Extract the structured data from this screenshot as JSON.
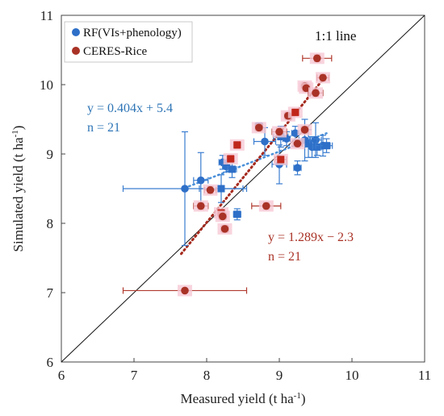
{
  "chart_data": {
    "type": "scatter",
    "xlabel": "Measured yield (t ha",
    "xlabel_sup": "-1",
    "xlabel_end": ")",
    "ylabel": "Simulated yield (t ha",
    "ylabel_sup": "-1",
    "ylabel_end": ")",
    "xlim": [
      6,
      11
    ],
    "ylim": [
      6,
      11
    ],
    "xticks": [
      "6",
      "7",
      "8",
      "9",
      "10",
      "11"
    ],
    "yticks": [
      "6",
      "7",
      "8",
      "9",
      "10",
      "11"
    ],
    "legend_position": "top-left",
    "line_label": "1:1 line",
    "series": [
      {
        "name": "RF(VIs+phenology)",
        "color": "#2e6fc8",
        "fit_label": "y = 0.404x + 5.4",
        "n_label": "n = 21",
        "fit": {
          "slope": 0.404,
          "intercept": 5.4,
          "x_range": [
            7.7,
            9.65
          ]
        },
        "points": [
          {
            "x": 7.7,
            "y": 8.5,
            "xerr": 0.85,
            "yerr": 0.82,
            "marker": "circle"
          },
          {
            "x": 7.92,
            "y": 8.62,
            "xerr": 0.1,
            "yerr": 0.4,
            "marker": "circle"
          },
          {
            "x": 8.2,
            "y": 8.5,
            "xerr": 0.3,
            "yerr": 0.2,
            "marker": "square"
          },
          {
            "x": 8.22,
            "y": 8.88,
            "xerr": 0.05,
            "yerr": 0.1,
            "marker": "circle"
          },
          {
            "x": 8.27,
            "y": 8.82,
            "xerr": 0.05,
            "yerr": 0.08,
            "marker": "circle"
          },
          {
            "x": 8.35,
            "y": 8.78,
            "xerr": 0.06,
            "yerr": 0.12,
            "marker": "square"
          },
          {
            "x": 8.42,
            "y": 8.13,
            "xerr": 0.05,
            "yerr": 0.08,
            "marker": "square"
          },
          {
            "x": 8.72,
            "y": 9.4,
            "xerr": 0.05,
            "yerr": 0.05,
            "marker": "square"
          },
          {
            "x": 8.8,
            "y": 9.18,
            "xerr": 0.15,
            "yerr": 0.2,
            "marker": "circle"
          },
          {
            "x": 9.0,
            "y": 8.85,
            "xerr": 0.1,
            "yerr": 0.28,
            "marker": "circle"
          },
          {
            "x": 9.02,
            "y": 9.25,
            "xerr": 0.1,
            "yerr": 0.15,
            "marker": "square"
          },
          {
            "x": 9.1,
            "y": 9.22,
            "xerr": 0.05,
            "yerr": 0.1,
            "marker": "circle"
          },
          {
            "x": 9.22,
            "y": 9.3,
            "xerr": 0.05,
            "yerr": 0.1,
            "marker": "circle"
          },
          {
            "x": 9.25,
            "y": 8.8,
            "xerr": 0.05,
            "yerr": 0.1,
            "marker": "circle"
          },
          {
            "x": 9.35,
            "y": 9.2,
            "xerr": 0.08,
            "yerr": 0.3,
            "marker": "circle"
          },
          {
            "x": 9.4,
            "y": 9.15,
            "xerr": 0.08,
            "yerr": 0.2,
            "marker": "square"
          },
          {
            "x": 9.45,
            "y": 9.1,
            "xerr": 0.1,
            "yerr": 0.15,
            "marker": "circle"
          },
          {
            "x": 9.5,
            "y": 9.2,
            "xerr": 0.08,
            "yerr": 0.25,
            "marker": "circle"
          },
          {
            "x": 9.52,
            "y": 9.1,
            "xerr": 0.06,
            "yerr": 0.12,
            "marker": "square"
          },
          {
            "x": 9.6,
            "y": 9.12,
            "xerr": 0.1,
            "yerr": 0.15,
            "marker": "circle"
          },
          {
            "x": 9.65,
            "y": 9.12,
            "xerr": 0.08,
            "yerr": 0.1,
            "marker": "square"
          }
        ]
      },
      {
        "name": "CERES-Rice",
        "color": "#a93226",
        "fit_label": "y = 1.289x − 2.3",
        "n_label": "n = 21",
        "fit": {
          "slope": 1.289,
          "intercept": -2.3,
          "x_range": [
            7.65,
            9.65
          ]
        },
        "points": [
          {
            "x": 7.7,
            "y": 7.03,
            "xerr": 0.85,
            "yerr": 0.0,
            "marker": "circle"
          },
          {
            "x": 7.92,
            "y": 8.25,
            "xerr": 0.1,
            "yerr": 0.05,
            "marker": "circle"
          },
          {
            "x": 8.05,
            "y": 8.48,
            "xerr": 0.08,
            "yerr": 0.05,
            "marker": "circle"
          },
          {
            "x": 8.2,
            "y": 8.15,
            "xerr": 0.05,
            "yerr": 0.05,
            "marker": "square"
          },
          {
            "x": 8.22,
            "y": 8.1,
            "xerr": 0.05,
            "yerr": 0.05,
            "marker": "circle"
          },
          {
            "x": 8.25,
            "y": 7.92,
            "xerr": 0.05,
            "yerr": 0.05,
            "marker": "circle"
          },
          {
            "x": 8.33,
            "y": 8.93,
            "xerr": 0.05,
            "yerr": 0.05,
            "marker": "square"
          },
          {
            "x": 8.42,
            "y": 9.13,
            "xerr": 0.05,
            "yerr": 0.05,
            "marker": "square"
          },
          {
            "x": 8.72,
            "y": 9.38,
            "xerr": 0.05,
            "yerr": 0.05,
            "marker": "circle"
          },
          {
            "x": 8.82,
            "y": 8.25,
            "xerr": 0.2,
            "yerr": 0.05,
            "marker": "circle"
          },
          {
            "x": 9.0,
            "y": 9.32,
            "xerr": 0.1,
            "yerr": 0.05,
            "marker": "circle"
          },
          {
            "x": 9.02,
            "y": 8.92,
            "xerr": 0.08,
            "yerr": 0.05,
            "marker": "square"
          },
          {
            "x": 9.12,
            "y": 9.55,
            "xerr": 0.05,
            "yerr": 0.05,
            "marker": "circle"
          },
          {
            "x": 9.22,
            "y": 9.6,
            "xerr": 0.05,
            "yerr": 0.05,
            "marker": "square"
          },
          {
            "x": 9.25,
            "y": 9.15,
            "xerr": 0.06,
            "yerr": 0.05,
            "marker": "circle"
          },
          {
            "x": 9.35,
            "y": 9.98,
            "xerr": 0.05,
            "yerr": 0.05,
            "marker": "circle"
          },
          {
            "x": 9.37,
            "y": 9.95,
            "xerr": 0.05,
            "yerr": 0.05,
            "marker": "circle"
          },
          {
            "x": 9.35,
            "y": 9.35,
            "xerr": 0.05,
            "yerr": 0.05,
            "marker": "circle"
          },
          {
            "x": 9.5,
            "y": 9.88,
            "xerr": 0.1,
            "yerr": 0.05,
            "marker": "circle"
          },
          {
            "x": 9.52,
            "y": 10.38,
            "xerr": 0.2,
            "yerr": 0.05,
            "marker": "circle"
          },
          {
            "x": 9.6,
            "y": 10.1,
            "xerr": 0.08,
            "yerr": 0.05,
            "marker": "circle"
          }
        ]
      }
    ]
  }
}
